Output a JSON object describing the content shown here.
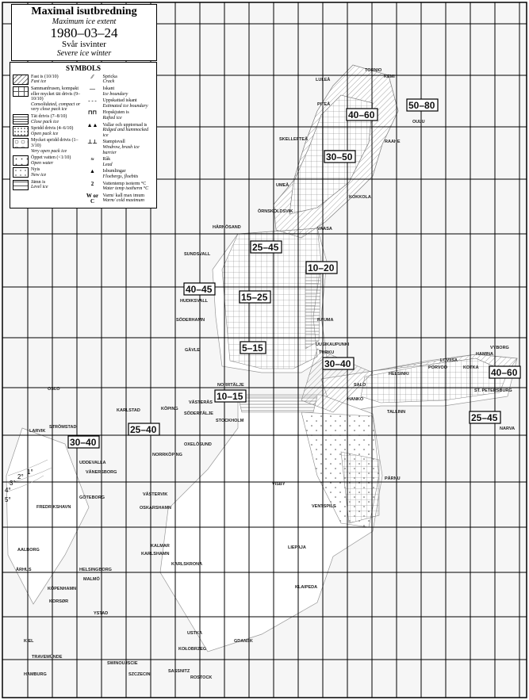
{
  "header": {
    "title": "Maximal isutbredning",
    "title_en": "Maximum ice extent",
    "date": "1980–03–24",
    "winter": "Svår isvinter",
    "winter_en": "Severe ice winter"
  },
  "legend": {
    "heading": "SYMBOLS",
    "ice_types": [
      {
        "sv": "Fast is (10/10)",
        "en": "Fast ice",
        "icon": "hatched"
      },
      {
        "sv": "Sammanfrusen, kompakt eller mycket tät drivis (9–10/10)",
        "en": "Consolidated, compact or very close pack ice",
        "icon": "grid"
      },
      {
        "sv": "Tät drivis (7–8/10)",
        "en": "Close pack ice",
        "icon": "horizontal-lines"
      },
      {
        "sv": "Spridd drivis (4–6/10)",
        "en": "Open pack ice",
        "icon": "dense-dots"
      },
      {
        "sv": "Mycket spridd drivis (1–3/10)",
        "en": "Very open pack ice",
        "icon": "circles"
      },
      {
        "sv": "Öppet vatten (<1/10)",
        "en": "Open water",
        "icon": "sparse-dots"
      },
      {
        "sv": "Nyis",
        "en": "New ice",
        "icon": "crosses"
      },
      {
        "sv": "Jämn is",
        "en": "Level ice",
        "icon": "two-lines"
      }
    ],
    "symbols": [
      {
        "sv": "Spricka",
        "en": "Crack"
      },
      {
        "sv": "Iskant",
        "en": "Ice boundary"
      },
      {
        "sv": "Uppskattad iskant",
        "en": "Estimated ice boundary"
      },
      {
        "sv": "Hopskjuten is",
        "en": "Rafted ice"
      },
      {
        "sv": "Vallar och upptornad is",
        "en": "Ridged and hummocked ice"
      },
      {
        "sv": "Stampisvall",
        "en": "Windrow, brash ice barrier"
      },
      {
        "sv": "Råk",
        "en": "Lead"
      },
      {
        "sv": "Isbumlingar",
        "en": "Floebergs, floebits"
      },
      {
        "sv": "Vattentemp isoterm °C",
        "en": "Water temp isotherm °C",
        "glyph": "2"
      },
      {
        "sv": "Varm/ kall max imum",
        "en": "Warm/ cold maximum",
        "glyph": "W or C"
      }
    ]
  },
  "thickness_labels": [
    "50–80",
    "40–60",
    "30–50",
    "25–45",
    "10–20",
    "40–45",
    "15–25",
    "5–15",
    "30–40",
    "40–60",
    "10–15",
    "25–45",
    "30–40",
    "25–40"
  ],
  "isotherms": [
    "1°",
    "2°",
    "3°",
    "4°",
    "5°"
  ],
  "cities": [
    "LULEÅ",
    "PITEÅ",
    "SKELLEFTEÅ",
    "UMEÅ",
    "ÖRNSKÖLDSVIK",
    "HÄRNÖSAND",
    "SUNDSVALL",
    "HUDIKSVALL",
    "SÖDERHAMN",
    "GÄVLE",
    "NORRTÄLJE",
    "STOCKHOLM",
    "VÄSTERÅS",
    "KÖPING",
    "SÖDERTÄLJE",
    "OXELÖSUND",
    "NORRKÖPING",
    "VÄSTERVIK",
    "OSKARSHAMN",
    "KALMAR",
    "KARLSKRONA",
    "KARLSHAMN",
    "HELSINGBORG",
    "KÖPENHAMN",
    "MALMÖ",
    "YSTAD",
    "TRAVEMÜNDE",
    "KIEL",
    "HAMBURG",
    "SWINOUJSCIE",
    "SZCZECIN",
    "KOŁOBRZEG",
    "USTKA",
    "GDANSK",
    "KLAIPEDA",
    "LIEPAJA",
    "VENTSPILS",
    "VISBY",
    "SALO",
    "HANKO",
    "HELSINKI",
    "PORVOO",
    "LOVIISA",
    "KOTKA",
    "HAMINA",
    "VYBORG",
    "ST. PETERSBURG",
    "NARVA",
    "TALLINN",
    "PÄRNU",
    "TURKU",
    "UUSIKAUPUNKI",
    "RAUMA",
    "VAASA",
    "KOKKOLA",
    "RAAHE",
    "OULU",
    "KEMI",
    "TORNIO",
    "OSLO",
    "LARVIK",
    "STRÖMSTAD",
    "KARLSTAD",
    "UDDEVALLA",
    "VÄNERSBORG",
    "GÖTEBORG",
    "FREDRIKSHAVN",
    "AALBORG",
    "ÅRHUS",
    "KORSØR",
    "SASSNITZ",
    "ROSTOCK"
  ]
}
